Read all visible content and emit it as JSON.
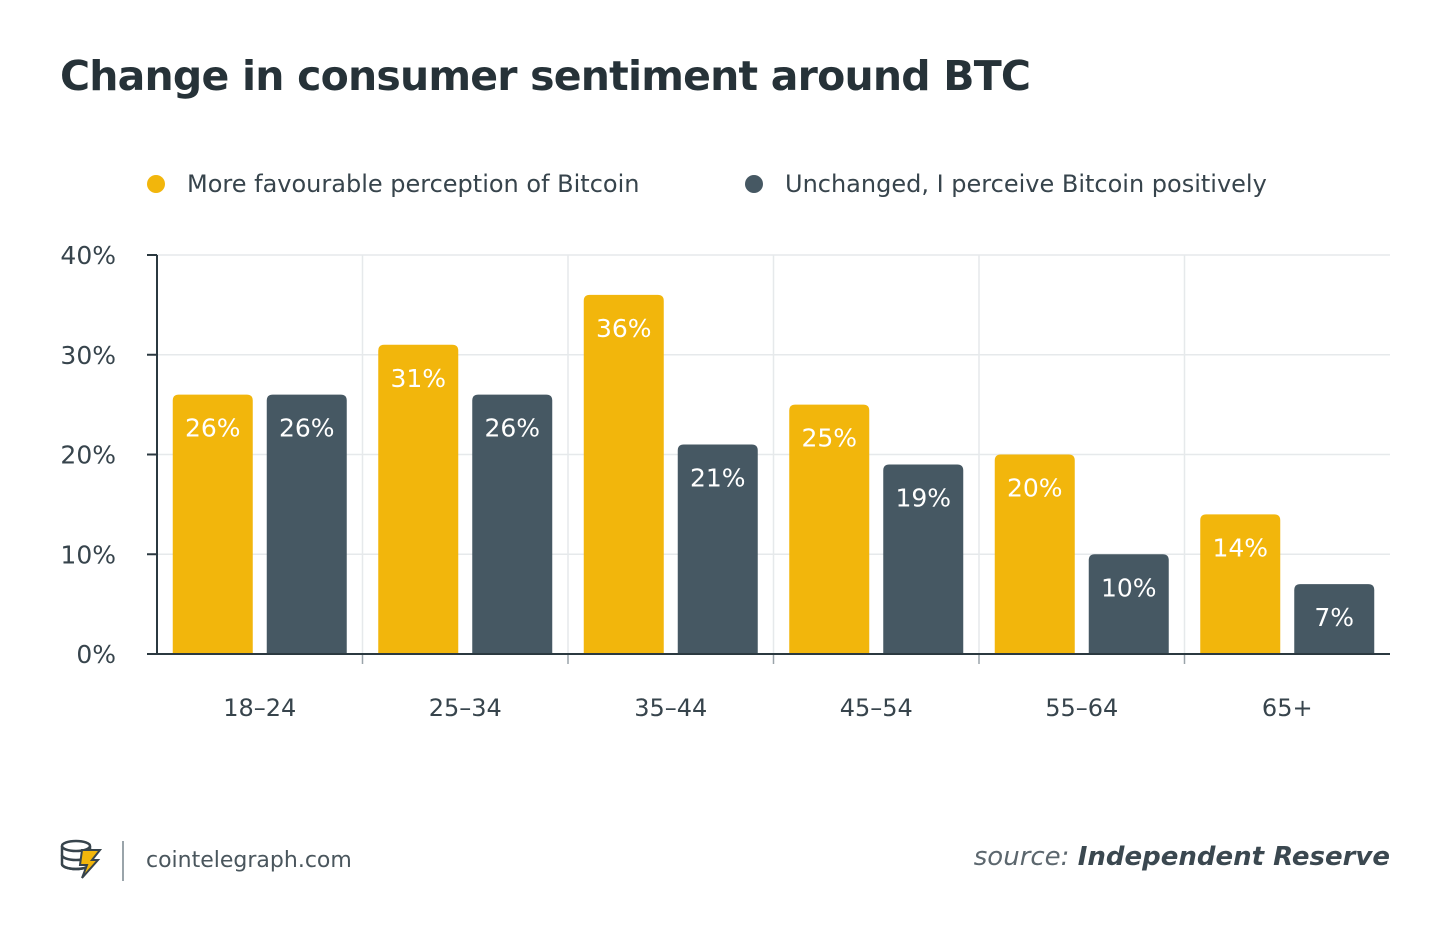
{
  "title": "Change in consumer sentiment around BTC",
  "colors": {
    "series1": "#f2b60c",
    "series2": "#465863",
    "grid": "#e6e9eb",
    "axis": "#2b3940"
  },
  "chart_data": {
    "type": "bar",
    "title": "Change in consumer sentiment around BTC",
    "xlabel": "",
    "ylabel": "",
    "categories": [
      "18–24",
      "25–34",
      "35–44",
      "45–54",
      "55–64",
      "65+"
    ],
    "series": [
      {
        "name": "More favourable perception of Bitcoin",
        "values": [
          26,
          31,
          36,
          25,
          20,
          14
        ],
        "labels": [
          "26%",
          "31%",
          "36%",
          "25%",
          "20%",
          "14%"
        ]
      },
      {
        "name": "Unchanged, I perceive Bitcoin positively",
        "values": [
          26,
          26,
          21,
          19,
          10,
          7
        ],
        "labels": [
          "26%",
          "26%",
          "21%",
          "19%",
          "10%",
          "7%"
        ]
      }
    ],
    "yticks": [
      "0%",
      "10%",
      "20%",
      "30%",
      "40%"
    ],
    "ylim": [
      0,
      40
    ],
    "grid": true,
    "legend": "top"
  },
  "footer": {
    "site": "cointelegraph.com",
    "logo_icon": "cointelegraph-logo-icon",
    "source_prefix": "source:",
    "source_name": "Independent Reserve"
  }
}
